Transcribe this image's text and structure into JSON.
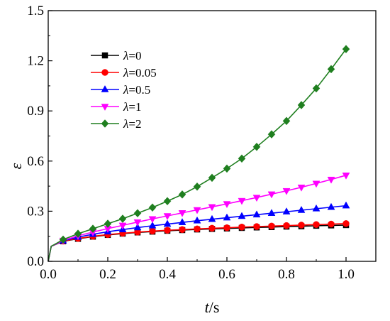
{
  "chart_data": {
    "type": "line",
    "title": "",
    "xlabel": {
      "var": "t",
      "unit": "/s"
    },
    "ylabel": "ε",
    "xlim": [
      0,
      1.1
    ],
    "ylim": [
      0,
      1.5
    ],
    "xticks": [
      0.0,
      0.2,
      0.4,
      0.6,
      0.8,
      1.0
    ],
    "yticks": [
      0.0,
      0.3,
      0.6,
      0.9,
      1.2,
      1.5
    ],
    "xtick_labels": [
      "0.0",
      "0.2",
      "0.4",
      "0.6",
      "0.8",
      "1.0"
    ],
    "ytick_labels": [
      "0.0",
      "0.3",
      "0.6",
      "0.9",
      "1.2",
      "1.5"
    ],
    "grid": false,
    "legend_position": "top-left",
    "x": [
      0,
      0.01,
      0.05,
      0.1,
      0.15,
      0.2,
      0.25,
      0.3,
      0.35,
      0.4,
      0.45,
      0.5,
      0.55,
      0.6,
      0.65,
      0.7,
      0.75,
      0.8,
      0.85,
      0.9,
      0.95,
      1.0
    ],
    "series": [
      {
        "name": "λ=0",
        "greek": "λ",
        "value_text": "=0",
        "color": "#000000",
        "marker": "square",
        "values": [
          0,
          0.09,
          0.12,
          0.135,
          0.148,
          0.158,
          0.166,
          0.173,
          0.178,
          0.183,
          0.187,
          0.191,
          0.194,
          0.197,
          0.2,
          0.203,
          0.205,
          0.208,
          0.21,
          0.213,
          0.215,
          0.217
        ]
      },
      {
        "name": "λ=0.05",
        "greek": "λ",
        "value_text": "=0.05",
        "color": "#ff0000",
        "marker": "circle",
        "values": [
          0,
          0.09,
          0.121,
          0.137,
          0.15,
          0.16,
          0.168,
          0.175,
          0.181,
          0.186,
          0.19,
          0.194,
          0.198,
          0.201,
          0.205,
          0.208,
          0.211,
          0.214,
          0.217,
          0.22,
          0.223,
          0.226
        ]
      },
      {
        "name": "λ=0.5",
        "greek": "λ",
        "value_text": "=0.5",
        "color": "#0000ff",
        "marker": "triangle-up",
        "values": [
          0,
          0.09,
          0.123,
          0.145,
          0.162,
          0.177,
          0.19,
          0.202,
          0.213,
          0.223,
          0.233,
          0.243,
          0.252,
          0.261,
          0.27,
          0.279,
          0.288,
          0.297,
          0.306,
          0.315,
          0.324,
          0.333
        ]
      },
      {
        "name": "λ=1",
        "greek": "λ",
        "value_text": "=1",
        "color": "#ff00ff",
        "marker": "triangle-down",
        "values": [
          0,
          0.09,
          0.125,
          0.153,
          0.175,
          0.196,
          0.215,
          0.235,
          0.254,
          0.272,
          0.29,
          0.308,
          0.326,
          0.344,
          0.363,
          0.382,
          0.402,
          0.422,
          0.443,
          0.466,
          0.49,
          0.515
        ]
      },
      {
        "name": "λ=2",
        "greek": "λ",
        "value_text": "=2",
        "color": "#1f7f1f",
        "marker": "diamond",
        "values": [
          0,
          0.09,
          0.13,
          0.165,
          0.195,
          0.225,
          0.255,
          0.288,
          0.322,
          0.36,
          0.4,
          0.447,
          0.5,
          0.555,
          0.615,
          0.685,
          0.76,
          0.84,
          0.935,
          1.035,
          1.15,
          1.27
        ]
      }
    ]
  }
}
